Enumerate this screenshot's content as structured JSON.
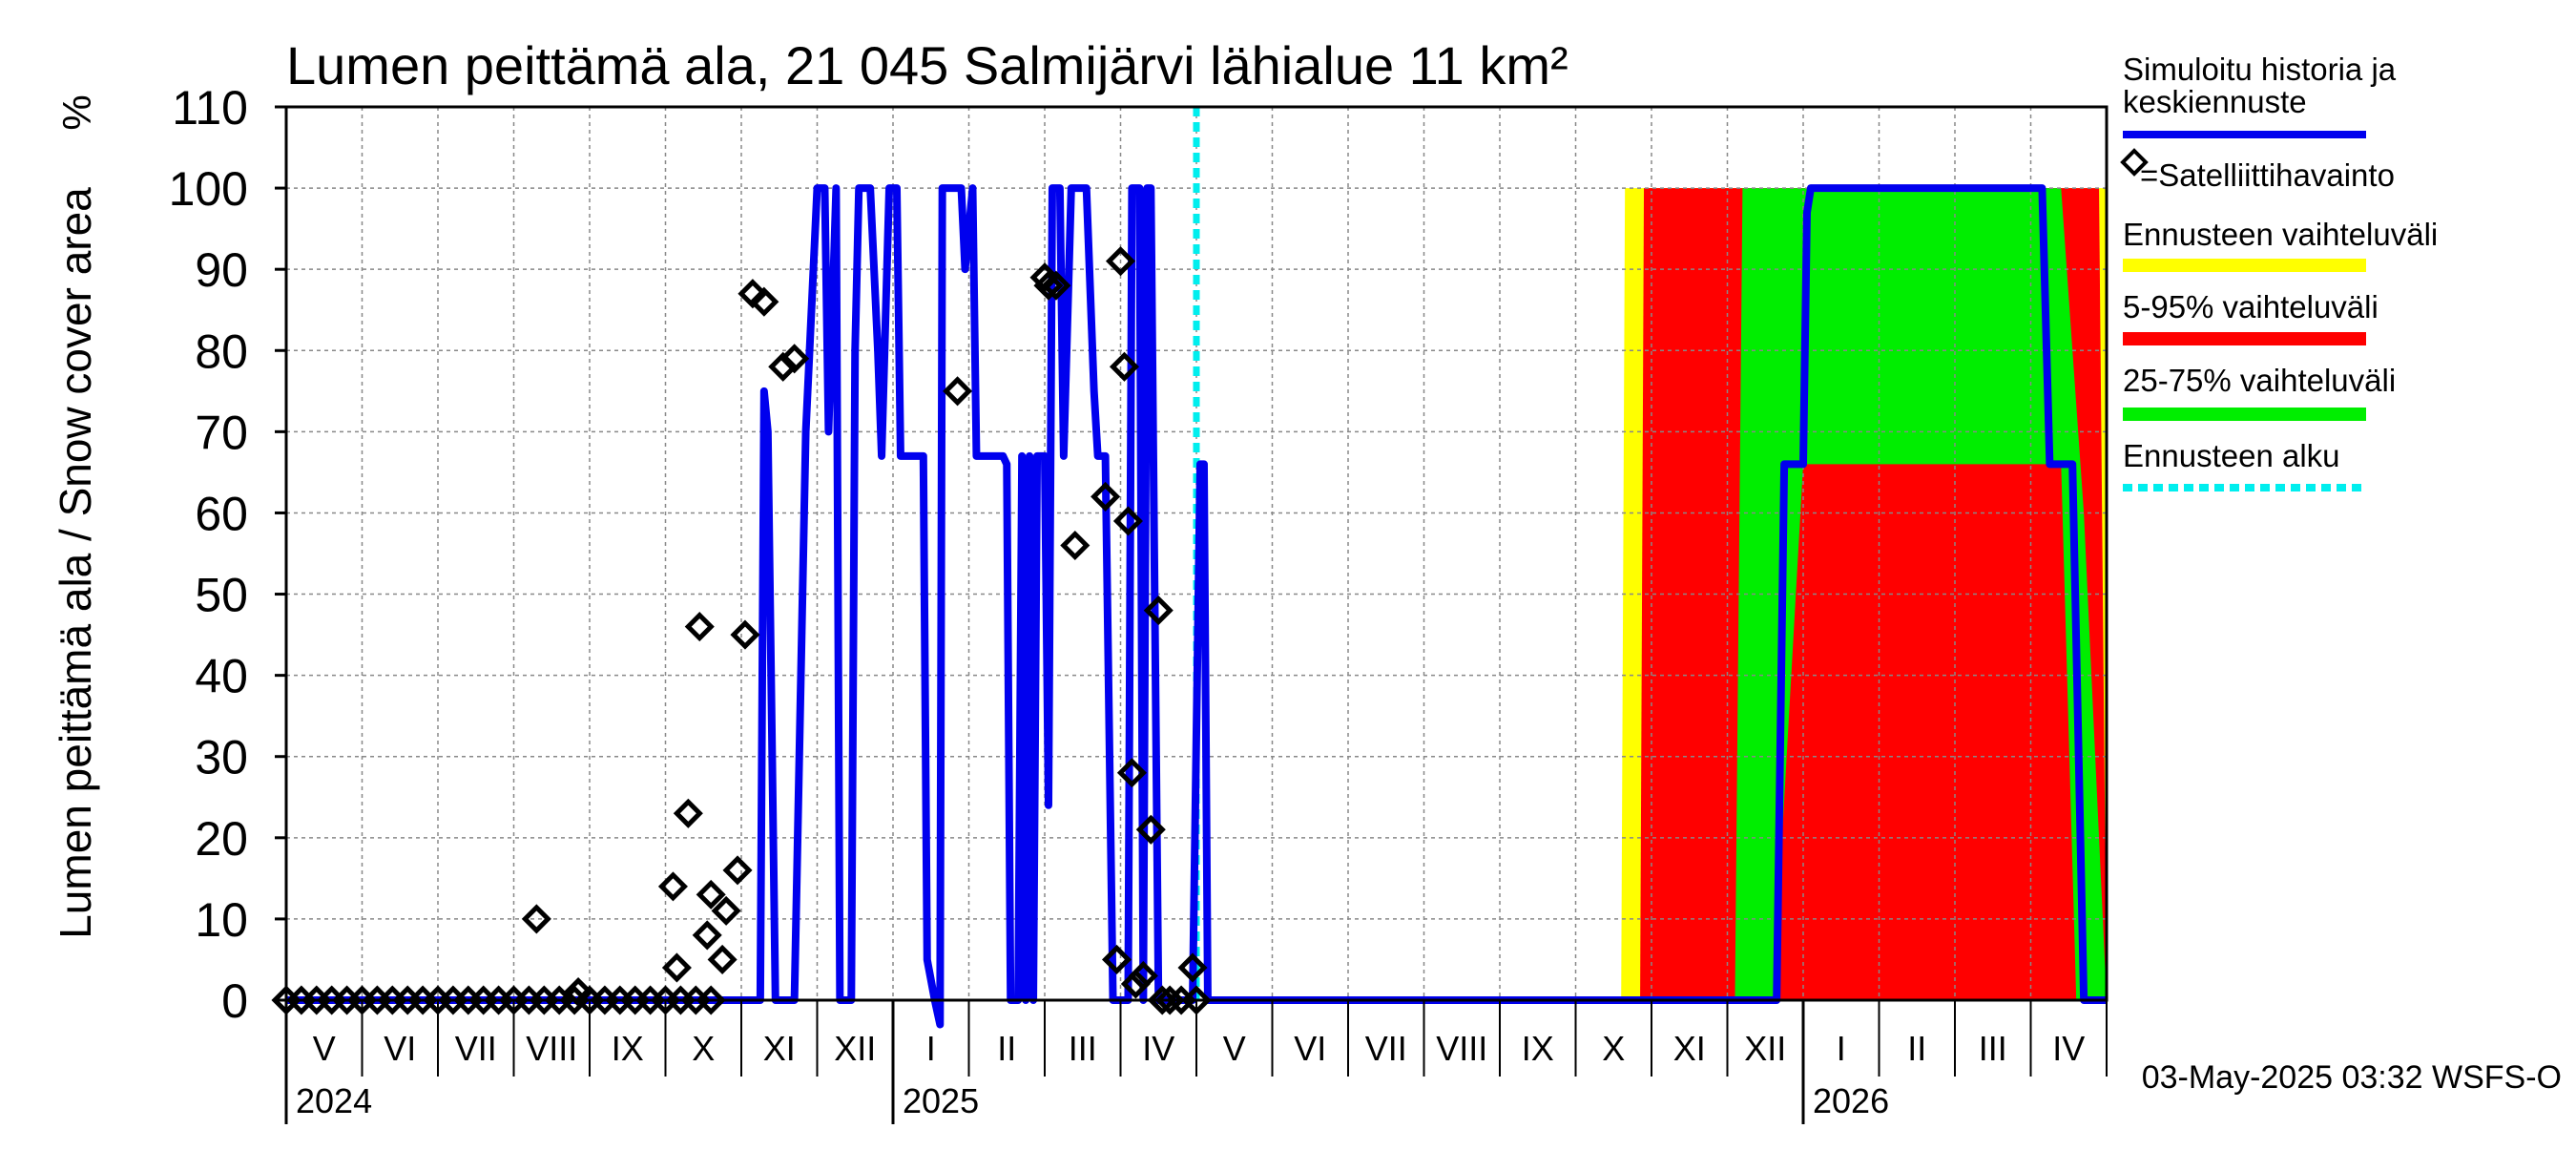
{
  "chart_data": {
    "type": "area",
    "title": "Lumen peittämä ala, 21 045 Salmijärvi lähialue 11 km²",
    "ylabel": "Lumen peittämä ala / Snow cover area",
    "yunit": "%",
    "ylim": [
      0,
      110
    ],
    "yticks": [
      0,
      10,
      20,
      30,
      40,
      50,
      60,
      70,
      80,
      90,
      100,
      110
    ],
    "xlim_months": [
      0,
      24
    ],
    "months": [
      "V",
      "VI",
      "VII",
      "VIII",
      "IX",
      "X",
      "XI",
      "XII",
      "I",
      "II",
      "III",
      "IV",
      "V",
      "VI",
      "VII",
      "VIII",
      "IX",
      "X",
      "XI",
      "XII",
      "I",
      "II",
      "III",
      "IV"
    ],
    "years": [
      {
        "label": "2024",
        "month_index": 0
      },
      {
        "label": "2025",
        "month_index": 8
      },
      {
        "label": "2026",
        "month_index": 20
      }
    ],
    "forecast_start_month": 12.0,
    "footer": "03-May-2025 03:32 WSFS-O",
    "colors": {
      "simulated": "#0000ee",
      "range": "#ffff00",
      "p5_95": "#ff0000",
      "p25_75": "#00ee00",
      "forecast_start": "#00eeee",
      "observation": "#000000"
    },
    "legend": [
      {
        "key": "simulated",
        "label": "Simuloitu historia ja keskiennuste"
      },
      {
        "key": "observation",
        "label": "=Satelliittihavainto"
      },
      {
        "key": "range",
        "label": "Ennusteen vaihteluväli"
      },
      {
        "key": "p5_95",
        "label": "5-95% vaihteluväli"
      },
      {
        "key": "p25_75",
        "label": "25-75% vaihteluväli"
      },
      {
        "key": "forecast_start",
        "label": "Ennusteen alku"
      }
    ],
    "series": [
      {
        "name": "Simuloitu historia ja keskiennuste",
        "key": "simulated",
        "points": [
          [
            0,
            0
          ],
          [
            5.4,
            0
          ],
          [
            6.0,
            0
          ],
          [
            6.25,
            0
          ],
          [
            6.3,
            75
          ],
          [
            6.35,
            70
          ],
          [
            6.45,
            0
          ],
          [
            6.7,
            0
          ],
          [
            6.85,
            70
          ],
          [
            7.0,
            100
          ],
          [
            7.1,
            100
          ],
          [
            7.15,
            70
          ],
          [
            7.25,
            100
          ],
          [
            7.3,
            0
          ],
          [
            7.45,
            0
          ],
          [
            7.5,
            80
          ],
          [
            7.55,
            100
          ],
          [
            7.7,
            100
          ],
          [
            7.8,
            80
          ],
          [
            7.85,
            67
          ],
          [
            7.95,
            100
          ],
          [
            8.05,
            100
          ],
          [
            8.1,
            67
          ],
          [
            8.3,
            67
          ],
          [
            8.4,
            67
          ],
          [
            8.45,
            5
          ],
          [
            8.55,
            0
          ],
          [
            8.62,
            -3
          ],
          [
            8.65,
            100
          ],
          [
            8.9,
            100
          ],
          [
            8.95,
            90
          ],
          [
            9.05,
            100
          ],
          [
            9.1,
            67
          ],
          [
            9.3,
            67
          ],
          [
            9.45,
            67
          ],
          [
            9.5,
            66
          ],
          [
            9.55,
            0
          ],
          [
            9.65,
            0
          ],
          [
            9.7,
            67
          ],
          [
            9.75,
            0
          ],
          [
            9.8,
            67
          ],
          [
            9.85,
            0
          ],
          [
            9.9,
            67
          ],
          [
            10.0,
            67
          ],
          [
            10.05,
            24
          ],
          [
            10.1,
            100
          ],
          [
            10.2,
            100
          ],
          [
            10.25,
            67
          ],
          [
            10.35,
            100
          ],
          [
            10.55,
            100
          ],
          [
            10.65,
            75
          ],
          [
            10.7,
            67
          ],
          [
            10.8,
            67
          ],
          [
            10.9,
            0
          ],
          [
            11.1,
            0
          ],
          [
            11.15,
            100
          ],
          [
            11.25,
            100
          ],
          [
            11.3,
            0
          ],
          [
            11.35,
            100
          ],
          [
            11.4,
            100
          ],
          [
            11.5,
            0
          ],
          [
            11.7,
            0
          ],
          [
            11.8,
            0
          ],
          [
            11.95,
            0
          ],
          [
            12.05,
            66
          ],
          [
            12.1,
            66
          ],
          [
            12.15,
            0
          ],
          [
            12.5,
            0
          ],
          [
            14.0,
            0
          ],
          [
            16.0,
            0
          ],
          [
            18.0,
            0
          ],
          [
            19.3,
            0
          ],
          [
            19.5,
            0
          ],
          [
            19.65,
            0
          ],
          [
            19.75,
            66
          ],
          [
            20.0,
            66
          ],
          [
            20.05,
            97
          ],
          [
            20.1,
            100
          ],
          [
            21.0,
            100
          ],
          [
            22.0,
            100
          ],
          [
            23.0,
            100
          ],
          [
            23.15,
            100
          ],
          [
            23.25,
            66
          ],
          [
            23.35,
            66
          ],
          [
            23.45,
            66
          ],
          [
            23.55,
            66
          ],
          [
            23.7,
            0
          ],
          [
            24.0,
            0
          ]
        ]
      },
      {
        "name": "Ennusteen vaihteluväli",
        "key": "range",
        "upper_start": 17.6,
        "upper_end": 24.0,
        "upper": 100,
        "lower": 0
      },
      {
        "name": "5-95% vaihteluväli",
        "key": "p5_95",
        "upper": [
          [
            17.85,
            0
          ],
          [
            17.9,
            100
          ],
          [
            23.9,
            100
          ],
          [
            24.0,
            0
          ]
        ],
        "lower": [
          [
            17.85,
            0
          ],
          [
            24.0,
            0
          ]
        ]
      },
      {
        "name": "25-75% vaihteluväli",
        "key": "p25_75",
        "upper": [
          [
            19.1,
            0
          ],
          [
            19.2,
            100
          ],
          [
            23.4,
            100
          ],
          [
            23.7,
            60
          ],
          [
            24.0,
            0
          ]
        ],
        "lower": [
          [
            19.1,
            0
          ],
          [
            19.6,
            0
          ],
          [
            20.0,
            66
          ],
          [
            23.4,
            66
          ],
          [
            23.6,
            0
          ],
          [
            24.0,
            0
          ]
        ]
      }
    ],
    "observations": [
      [
        0.0,
        0
      ],
      [
        0.2,
        0
      ],
      [
        0.4,
        0
      ],
      [
        0.6,
        0
      ],
      [
        0.8,
        0
      ],
      [
        1.0,
        0
      ],
      [
        1.2,
        0
      ],
      [
        1.4,
        0
      ],
      [
        1.6,
        0
      ],
      [
        1.8,
        0
      ],
      [
        2.0,
        0
      ],
      [
        2.2,
        0
      ],
      [
        2.4,
        0
      ],
      [
        2.6,
        0
      ],
      [
        2.8,
        0
      ],
      [
        3.0,
        0
      ],
      [
        3.2,
        0
      ],
      [
        3.4,
        0
      ],
      [
        3.6,
        0
      ],
      [
        3.8,
        0
      ],
      [
        4.0,
        0
      ],
      [
        4.2,
        0
      ],
      [
        4.4,
        0
      ],
      [
        4.6,
        0
      ],
      [
        4.8,
        0
      ],
      [
        5.0,
        0
      ],
      [
        5.2,
        0
      ],
      [
        5.4,
        0
      ],
      [
        5.6,
        0
      ],
      [
        3.3,
        10
      ],
      [
        3.85,
        1
      ],
      [
        5.15,
        4
      ],
      [
        5.3,
        23
      ],
      [
        5.1,
        14
      ],
      [
        5.45,
        46
      ],
      [
        5.55,
        8
      ],
      [
        5.6,
        13
      ],
      [
        5.75,
        5
      ],
      [
        5.8,
        11
      ],
      [
        5.95,
        16
      ],
      [
        6.05,
        45
      ],
      [
        6.15,
        87
      ],
      [
        6.3,
        86
      ],
      [
        6.55,
        78
      ],
      [
        6.7,
        79
      ],
      [
        8.85,
        75
      ],
      [
        10.0,
        89
      ],
      [
        10.05,
        88
      ],
      [
        10.15,
        88
      ],
      [
        10.4,
        56
      ],
      [
        10.8,
        62
      ],
      [
        10.95,
        5
      ],
      [
        11.0,
        91
      ],
      [
        11.05,
        78
      ],
      [
        11.1,
        59
      ],
      [
        11.15,
        28
      ],
      [
        11.2,
        2
      ],
      [
        11.3,
        3
      ],
      [
        11.4,
        21
      ],
      [
        11.5,
        48
      ],
      [
        11.55,
        0
      ],
      [
        11.65,
        0
      ],
      [
        11.8,
        0
      ],
      [
        11.95,
        4
      ],
      [
        12.0,
        0
      ]
    ]
  }
}
